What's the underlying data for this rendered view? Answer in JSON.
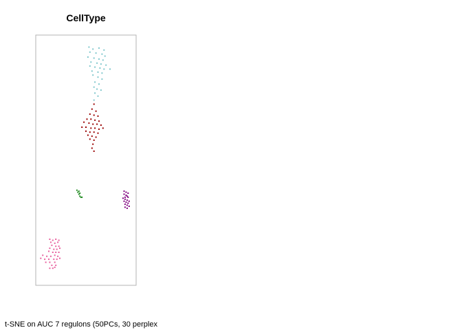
{
  "chart_data": {
    "type": "scatter",
    "title": "CellType",
    "caption": "t-SNE on AUC 7 regulons (50PCs, 30 perplex",
    "xlabel": "",
    "ylabel": "",
    "xlim": [
      0,
      100
    ],
    "ylim": [
      0,
      250
    ],
    "grid": false,
    "legend": "none",
    "series": [
      {
        "color": "#7FC7CC",
        "points": [
          [
            53,
            238
          ],
          [
            57,
            236
          ],
          [
            63,
            237
          ],
          [
            68,
            235
          ],
          [
            54,
            233
          ],
          [
            60,
            232
          ],
          [
            66,
            231
          ],
          [
            69,
            229
          ],
          [
            52,
            228
          ],
          [
            58,
            227
          ],
          [
            63,
            226
          ],
          [
            67,
            225
          ],
          [
            55,
            223
          ],
          [
            61,
            222
          ],
          [
            65,
            221
          ],
          [
            70,
            220
          ],
          [
            54,
            219
          ],
          [
            59,
            218
          ],
          [
            64,
            217
          ],
          [
            68,
            216
          ],
          [
            56,
            214
          ],
          [
            62,
            213
          ],
          [
            66,
            212
          ],
          [
            74,
            216
          ],
          [
            57,
            210
          ],
          [
            62,
            208
          ],
          [
            66,
            206
          ],
          [
            59,
            203
          ],
          [
            63,
            201
          ],
          [
            58,
            198
          ],
          [
            61,
            196
          ],
          [
            65,
            195
          ],
          [
            59,
            192
          ],
          [
            62,
            189
          ],
          [
            58,
            185
          ]
        ]
      },
      {
        "color": "#990000",
        "points": [
          [
            58,
            181
          ],
          [
            56,
            176
          ],
          [
            60,
            174
          ],
          [
            54,
            171
          ],
          [
            58,
            170
          ],
          [
            62,
            169
          ],
          [
            51,
            166
          ],
          [
            55,
            166
          ],
          [
            59,
            165
          ],
          [
            63,
            164
          ],
          [
            48,
            163
          ],
          [
            53,
            162
          ],
          [
            57,
            161
          ],
          [
            61,
            161
          ],
          [
            65,
            160
          ],
          [
            46,
            158
          ],
          [
            50,
            158
          ],
          [
            55,
            157
          ],
          [
            59,
            157
          ],
          [
            63,
            156
          ],
          [
            67,
            157
          ],
          [
            50,
            154
          ],
          [
            54,
            153
          ],
          [
            58,
            153
          ],
          [
            62,
            152
          ],
          [
            52,
            150
          ],
          [
            56,
            149
          ],
          [
            60,
            148
          ],
          [
            54,
            146
          ],
          [
            58,
            145
          ],
          [
            57,
            141
          ],
          [
            56,
            137
          ],
          [
            58,
            134
          ]
        ]
      },
      {
        "color": "#228B22",
        "points": [
          [
            41,
            95
          ],
          [
            43,
            94
          ],
          [
            42,
            93
          ],
          [
            44,
            92
          ],
          [
            43,
            91
          ],
          [
            44,
            89
          ],
          [
            45,
            88
          ],
          [
            46,
            88
          ]
        ]
      },
      {
        "color": "#800080",
        "points": [
          [
            88,
            94
          ],
          [
            90,
            93
          ],
          [
            92,
            92
          ],
          [
            88,
            91
          ],
          [
            90,
            90
          ],
          [
            91,
            89
          ],
          [
            89,
            88
          ],
          [
            92,
            88
          ],
          [
            87,
            87
          ],
          [
            89,
            86
          ],
          [
            91,
            85
          ],
          [
            93,
            84
          ],
          [
            88,
            84
          ],
          [
            90,
            83
          ],
          [
            92,
            82
          ],
          [
            89,
            81
          ],
          [
            91,
            80
          ],
          [
            93,
            79
          ],
          [
            89,
            78
          ],
          [
            91,
            77
          ]
        ]
      },
      {
        "color": "#E8609E",
        "points": [
          [
            14,
            46
          ],
          [
            17,
            45
          ],
          [
            20,
            46
          ],
          [
            23,
            45
          ],
          [
            15,
            43
          ],
          [
            19,
            42
          ],
          [
            22,
            43
          ],
          [
            16,
            40
          ],
          [
            20,
            39
          ],
          [
            23,
            39
          ],
          [
            14,
            37
          ],
          [
            18,
            36
          ],
          [
            21,
            36
          ],
          [
            24,
            37
          ],
          [
            13,
            34
          ],
          [
            17,
            33
          ],
          [
            20,
            33
          ],
          [
            23,
            33
          ],
          [
            7,
            30
          ],
          [
            11,
            29
          ],
          [
            15,
            29
          ],
          [
            19,
            30
          ],
          [
            22,
            29
          ],
          [
            5,
            27
          ],
          [
            9,
            26
          ],
          [
            13,
            26
          ],
          [
            18,
            26
          ],
          [
            21,
            26
          ],
          [
            24,
            27
          ],
          [
            10,
            23
          ],
          [
            14,
            23
          ],
          [
            19,
            23
          ],
          [
            16,
            20
          ],
          [
            20,
            20
          ],
          [
            14,
            17
          ],
          [
            17,
            17
          ],
          [
            19,
            18
          ]
        ]
      }
    ]
  }
}
